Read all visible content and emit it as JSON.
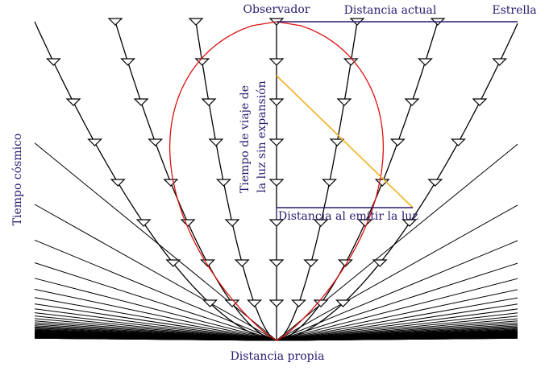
{
  "labels": {
    "observer": "Observador",
    "current_distance": "Distancia actual",
    "star": "Estrella",
    "travel_time_line1": "Tiempo de viaje de",
    "travel_time_line2": "la luz sin expansión",
    "emission_distance": "Distancia al emitir la luz",
    "cosmic_time": "Tiempo cósmico",
    "proper_distance": "Distancia propia"
  },
  "colors": {
    "worldline": "#000000",
    "light_cone": "#dd1111",
    "travel_path": "#f0b020",
    "distance_marker": "#2a1a6e",
    "text": "#2a1a6e"
  },
  "icons": {
    "worldline_marker": "down-triangle-icon"
  }
}
